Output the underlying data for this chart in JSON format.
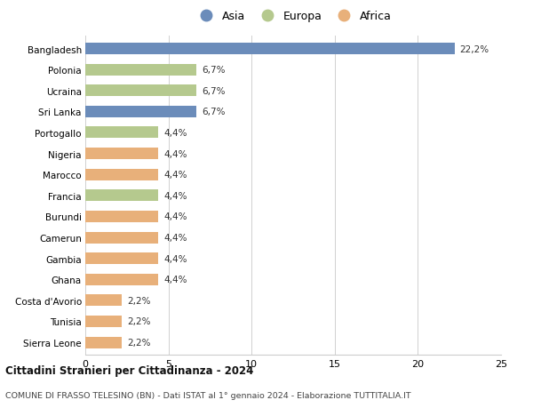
{
  "categories": [
    "Bangladesh",
    "Polonia",
    "Ucraina",
    "Sri Lanka",
    "Portogallo",
    "Nigeria",
    "Marocco",
    "Francia",
    "Burundi",
    "Camerun",
    "Gambia",
    "Ghana",
    "Costa d'Avorio",
    "Tunisia",
    "Sierra Leone"
  ],
  "values": [
    22.2,
    6.7,
    6.7,
    6.7,
    4.4,
    4.4,
    4.4,
    4.4,
    4.4,
    4.4,
    4.4,
    4.4,
    2.2,
    2.2,
    2.2
  ],
  "continents": [
    "Asia",
    "Europa",
    "Europa",
    "Asia",
    "Europa",
    "Africa",
    "Africa",
    "Europa",
    "Africa",
    "Africa",
    "Africa",
    "Africa",
    "Africa",
    "Africa",
    "Africa"
  ],
  "colors": {
    "Asia": "#6b8cba",
    "Europa": "#b5c98e",
    "Africa": "#e8b07a"
  },
  "labels": [
    "22,2%",
    "6,7%",
    "6,7%",
    "6,7%",
    "4,4%",
    "4,4%",
    "4,4%",
    "4,4%",
    "4,4%",
    "4,4%",
    "4,4%",
    "4,4%",
    "2,2%",
    "2,2%",
    "2,2%"
  ],
  "xlim": [
    0,
    25
  ],
  "xticks": [
    0,
    5,
    10,
    15,
    20,
    25
  ],
  "title": "Cittadini Stranieri per Cittadinanza - 2024",
  "subtitle": "COMUNE DI FRASSO TELESINO (BN) - Dati ISTAT al 1° gennaio 2024 - Elaborazione TUTTITALIA.IT",
  "legend_labels": [
    "Asia",
    "Europa",
    "Africa"
  ],
  "background_color": "#ffffff",
  "bar_height": 0.55
}
